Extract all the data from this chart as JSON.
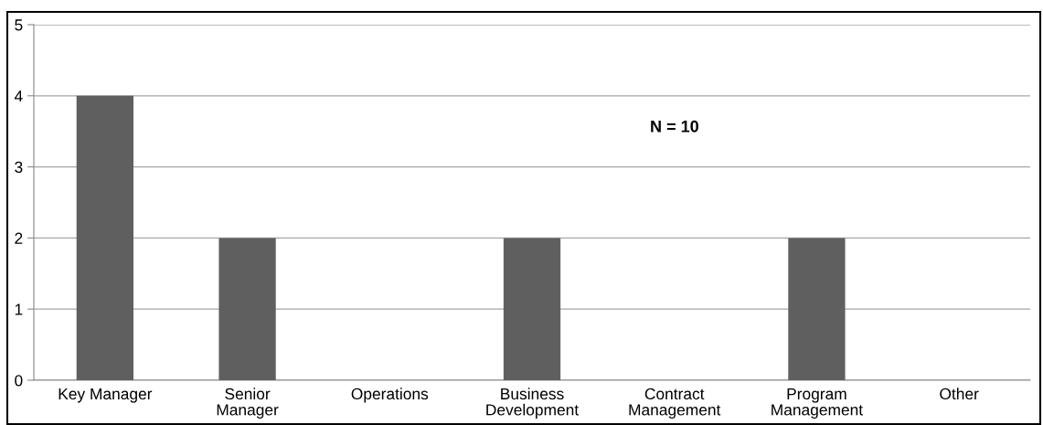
{
  "chart_data": {
    "type": "bar",
    "categories": [
      "Key Manager",
      "Senior\nManager",
      "Operations",
      "Business\nDevelopment",
      "Contract\nManagement",
      "Program\nManagement",
      "Other"
    ],
    "values": [
      4,
      2,
      0,
      2,
      0,
      2,
      0
    ],
    "color": "#5f5f5f",
    "ylim": [
      0,
      5
    ],
    "yticks": [
      0,
      1,
      2,
      3,
      4,
      5
    ],
    "grid": "y",
    "legend": false,
    "annotations": [
      "N = 10"
    ]
  }
}
